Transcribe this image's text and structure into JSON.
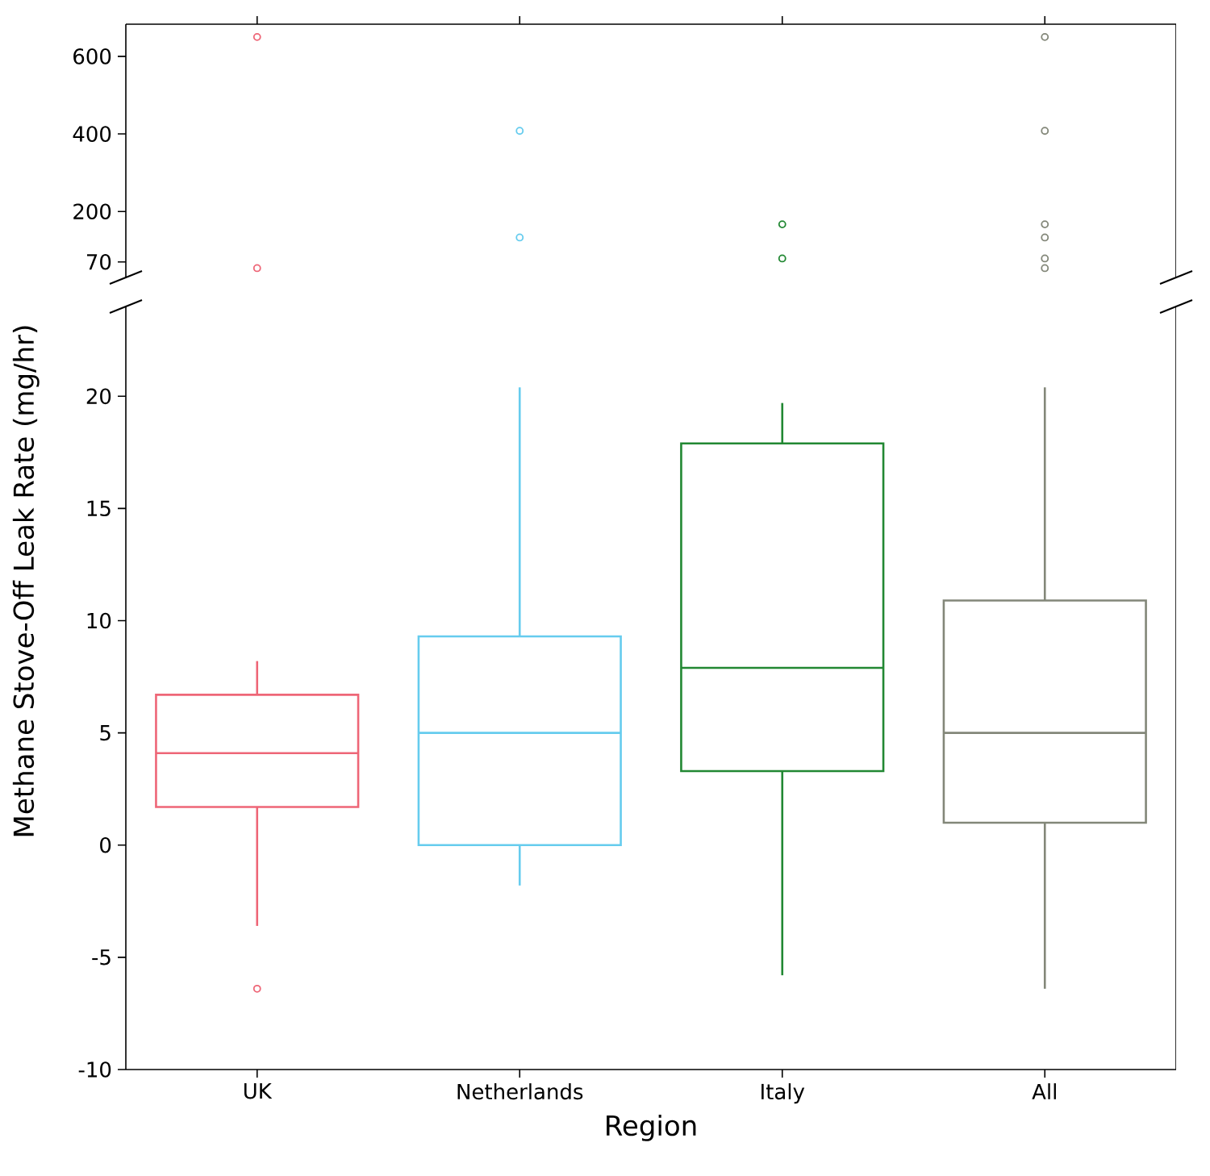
{
  "chart_data": [
    {
      "type": "scatter",
      "categories": [
        "UK",
        "Netherlands",
        "Italy",
        "All"
      ],
      "ylim": [
        30,
        683
      ],
      "yticks": [
        70,
        200,
        400,
        600
      ],
      "tick_labels": "y",
      "marker": "circle",
      "series": [
        {
          "color": "#ee6677",
          "x": [
            "UK",
            "UK"
          ],
          "values": [
            650,
            54
          ]
        },
        {
          "color": "#66ccee",
          "x": [
            "Netherlands",
            "Netherlands"
          ],
          "values": [
            408,
            133
          ]
        },
        {
          "color": "#228833",
          "x": [
            "Italy",
            "Italy"
          ],
          "values": [
            167,
            79
          ]
        },
        {
          "color": "#838779",
          "x": [
            "All",
            "All",
            "All",
            "All",
            "All",
            "All"
          ],
          "values": [
            650,
            408,
            167,
            133,
            79,
            54
          ]
        }
      ]
    },
    {
      "type": "box",
      "categories": [
        "UK",
        "Netherlands",
        "Italy",
        "All"
      ],
      "xlabel": "Region",
      "ylabel": "Methane Stove-Off Leak Rate (mg/hr)",
      "ylim": [
        -10,
        24
      ],
      "yticks": [
        -10,
        -5,
        0,
        5,
        10,
        15,
        20
      ],
      "colors": [
        "#ee6677",
        "#66ccee",
        "#228833",
        "#838779"
      ],
      "boxes": [
        {
          "low": -3.6,
          "q1": 1.7,
          "median": 4.1,
          "q3": 6.7,
          "high": 8.2,
          "outliers": [
            -6.4
          ]
        },
        {
          "low": -1.8,
          "q1": 0.0,
          "median": 5.0,
          "q3": 9.3,
          "high": 20.4
        },
        {
          "low": -5.8,
          "q1": 3.3,
          "median": 7.9,
          "q3": 17.9,
          "high": 19.7
        },
        {
          "low": -6.4,
          "q1": 1.0,
          "median": 5.0,
          "q3": 10.9,
          "high": 20.4
        }
      ]
    }
  ]
}
